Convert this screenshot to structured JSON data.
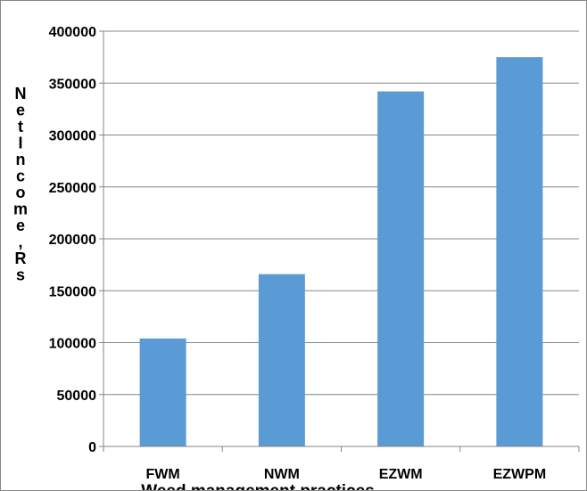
{
  "chart_data": {
    "type": "bar",
    "title": "",
    "xlabel": "Weed management practices",
    "ylabel": "Net Income, Rs",
    "categories": [
      "FWM",
      "NWM",
      "EZWM",
      "EZWPM"
    ],
    "values": [
      104000,
      166000,
      342000,
      375000
    ],
    "ylim": [
      0,
      400000
    ],
    "yticks": [
      0,
      50000,
      100000,
      150000,
      200000,
      250000,
      300000,
      350000,
      400000
    ],
    "grid": true,
    "legend": "none",
    "colors": {
      "bar": "#5b9bd5",
      "grid": "#868686",
      "axis": "#868686"
    }
  }
}
